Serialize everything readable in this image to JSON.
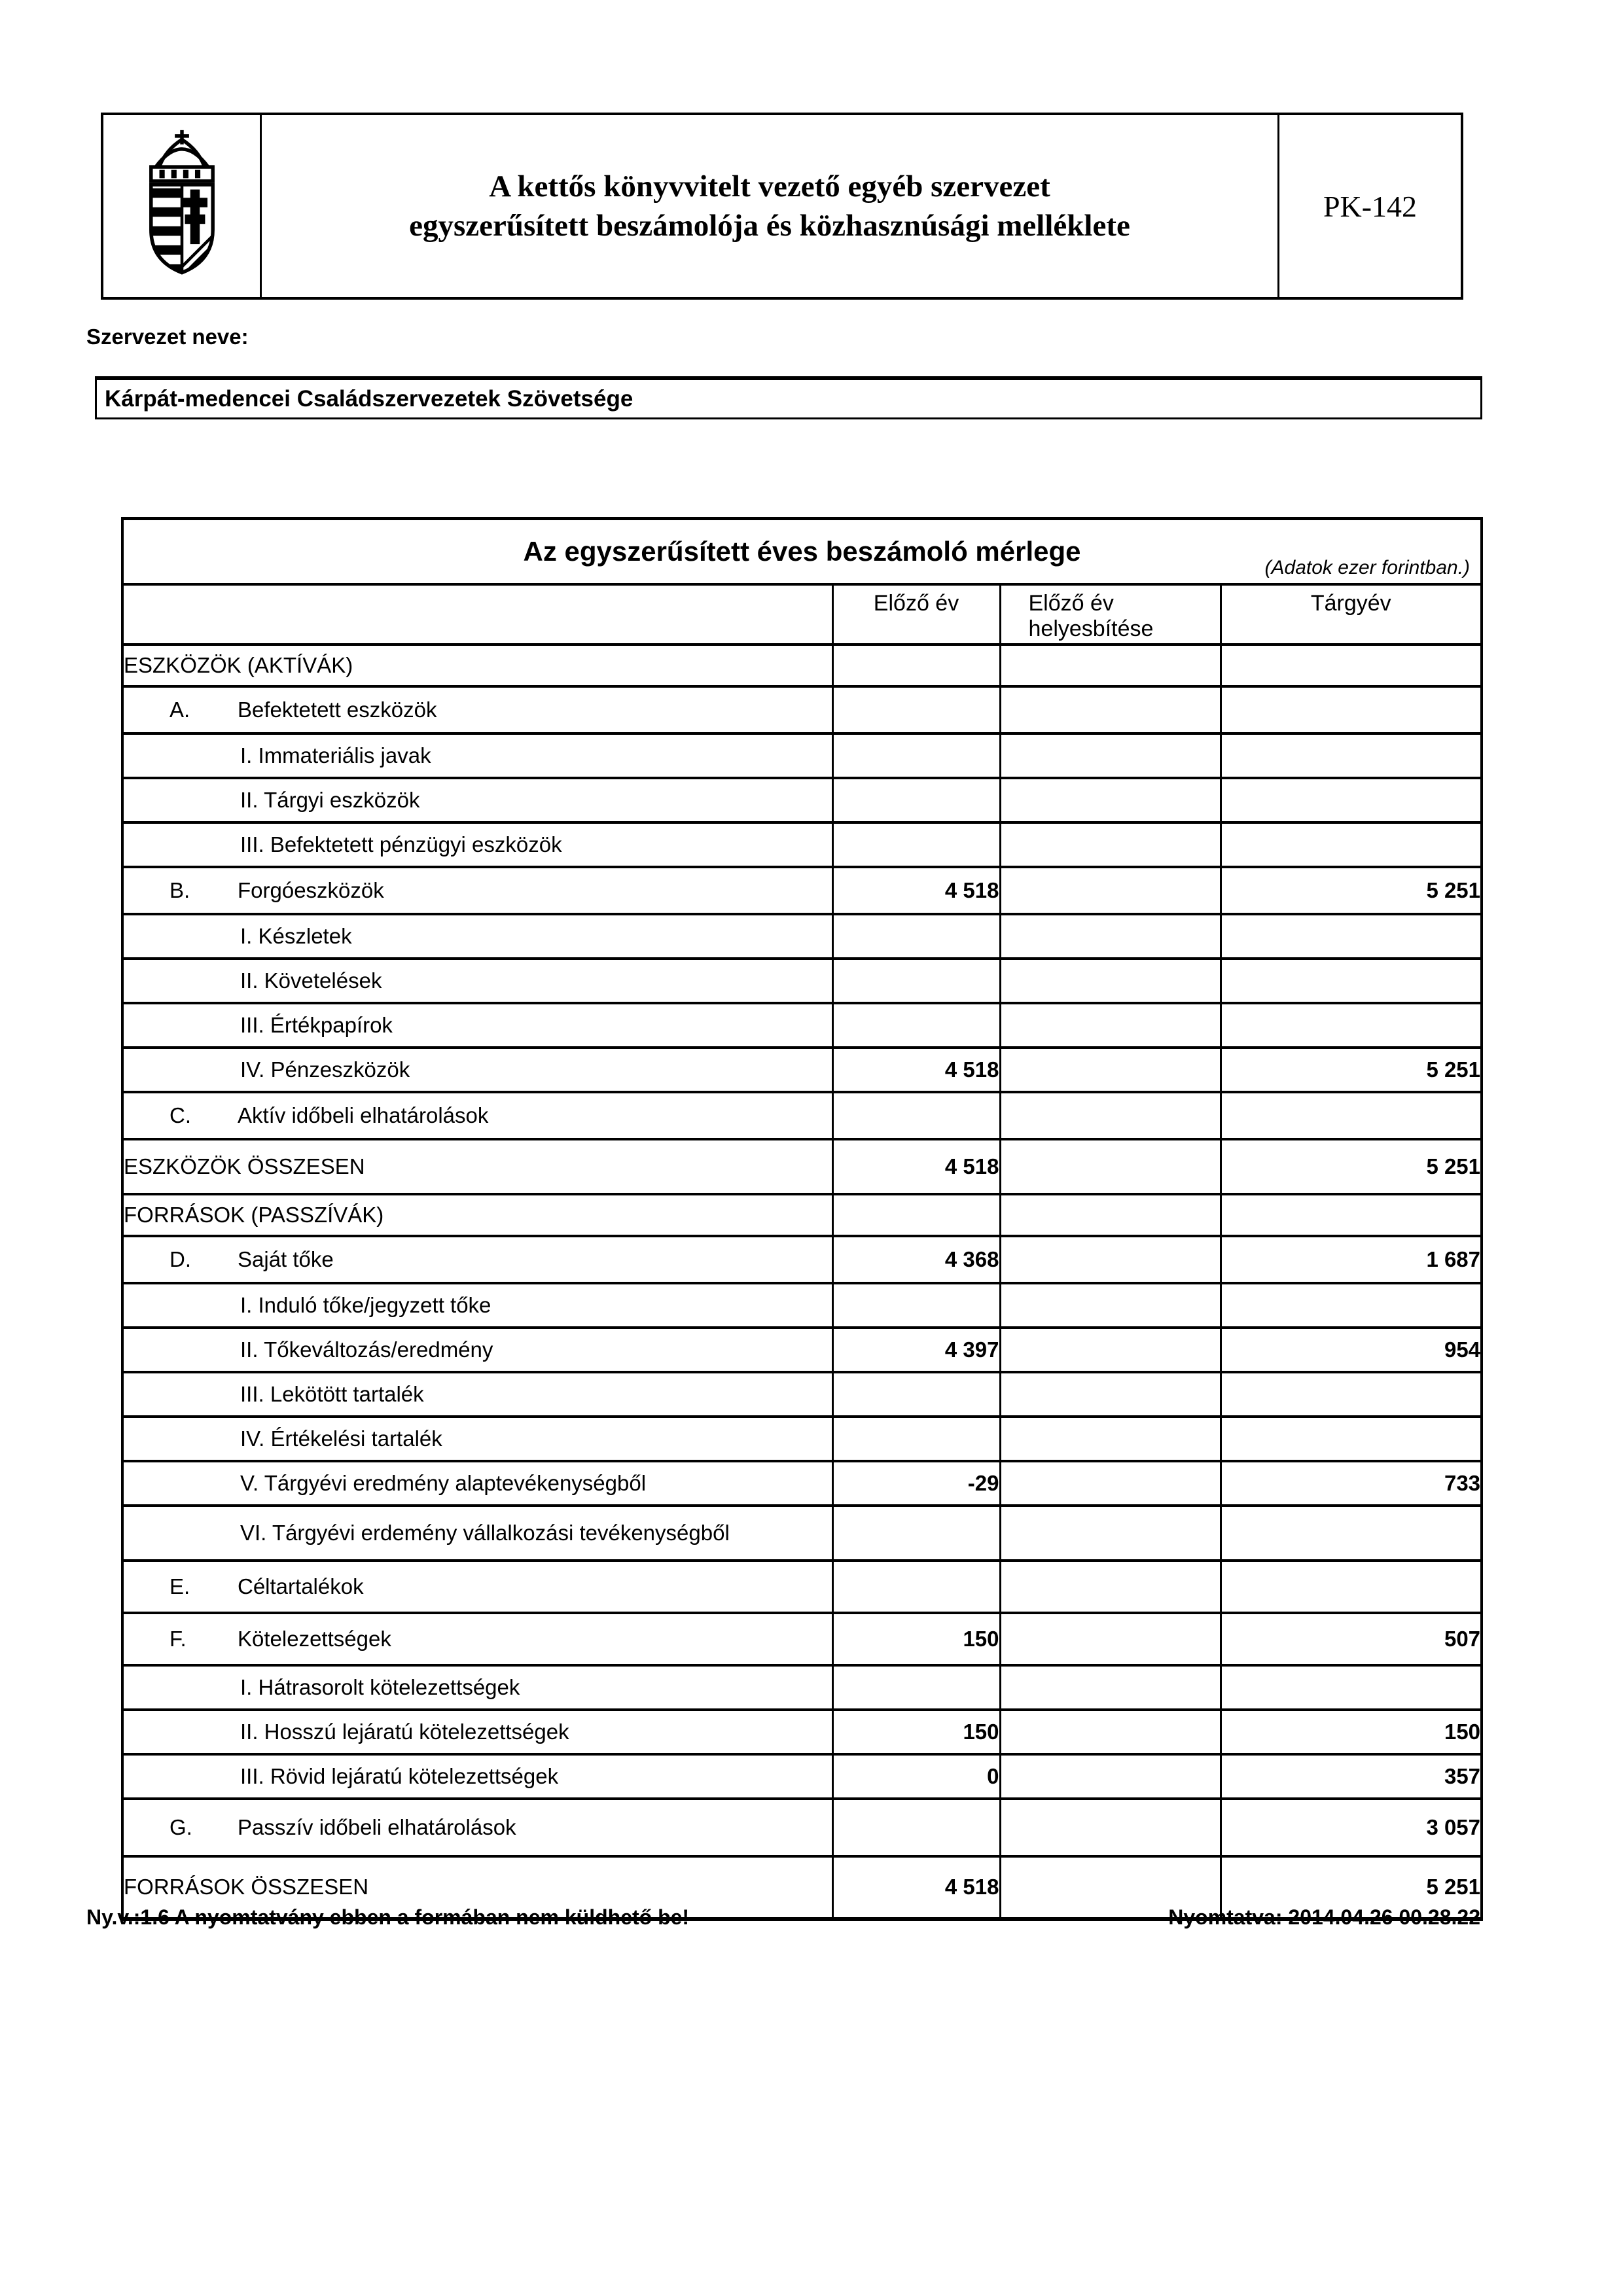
{
  "header": {
    "title_line1": "A kettős könyvvitelt vezető egyéb szervezet",
    "title_line2": "egyszerűsített beszámolója és közhasznúsági melléklete",
    "form_code": "PK-142",
    "logo_icon": "hungarian-coat-of-arms"
  },
  "org": {
    "label": "Szervezet neve:",
    "name": "Kárpát-medencei Családszervezetek Szövetsége"
  },
  "table": {
    "title": "Az egyszerűsített éves beszámoló mérlege",
    "unit_note": "(Adatok ezer forintban.)",
    "columns": [
      "Előző év",
      "Előző év helyesbítése",
      "Tárgyév"
    ],
    "rows": [
      {
        "type": "section",
        "label": "ESZKÖZÖK (AKTÍVÁK)",
        "values": [
          "",
          "",
          ""
        ]
      },
      {
        "type": "letter",
        "letter": "A.",
        "label": "Befektetett eszközök",
        "values": [
          "",
          "",
          ""
        ]
      },
      {
        "type": "sub",
        "label": "I. Immateriális javak",
        "values": [
          "",
          "",
          ""
        ]
      },
      {
        "type": "sub",
        "label": "II. Tárgyi eszközök",
        "values": [
          "",
          "",
          ""
        ]
      },
      {
        "type": "sub",
        "label": "III. Befektetett pénzügyi eszközök",
        "values": [
          "",
          "",
          ""
        ]
      },
      {
        "type": "letter",
        "letter": "B.",
        "label": "Forgóeszközök",
        "values": [
          "4 518",
          "",
          "5 251"
        ]
      },
      {
        "type": "sub",
        "label": "I. Készletek",
        "values": [
          "",
          "",
          ""
        ]
      },
      {
        "type": "sub",
        "label": "II. Követelések",
        "values": [
          "",
          "",
          ""
        ]
      },
      {
        "type": "sub",
        "label": "III. Értékpapírok",
        "values": [
          "",
          "",
          ""
        ]
      },
      {
        "type": "sub",
        "label": "IV. Pénzeszközök",
        "values": [
          "4 518",
          "",
          "5 251"
        ]
      },
      {
        "type": "letter",
        "letter": "C.",
        "label": "Aktív időbeli elhatárolások",
        "values": [
          "",
          "",
          ""
        ]
      },
      {
        "type": "total",
        "label": "ESZKÖZÖK ÖSSZESEN",
        "values": [
          "4 518",
          "",
          "5 251"
        ]
      },
      {
        "type": "section",
        "label": "FORRÁSOK (PASSZÍVÁK)",
        "values": [
          "",
          "",
          ""
        ]
      },
      {
        "type": "letter",
        "letter": "D.",
        "label": "Saját tőke",
        "values": [
          "4 368",
          "",
          "1 687"
        ]
      },
      {
        "type": "sub",
        "label": "I. Induló tőke/jegyzett tőke",
        "values": [
          "",
          "",
          ""
        ]
      },
      {
        "type": "sub",
        "label": "II. Tőkeváltozás/eredmény",
        "values": [
          "4 397",
          "",
          "954"
        ]
      },
      {
        "type": "sub",
        "label": "III. Lekötött tartalék",
        "values": [
          "",
          "",
          ""
        ]
      },
      {
        "type": "sub",
        "label": "IV. Értékelési tartalék",
        "values": [
          "",
          "",
          ""
        ]
      },
      {
        "type": "sub",
        "label": "V. Tárgyévi eredmény alaptevékenységből",
        "values": [
          "-29",
          "",
          "733"
        ]
      },
      {
        "type": "sub",
        "label": "VI. Tárgyévi erdemény vállalkozási tevékenységből",
        "values": [
          "",
          "",
          ""
        ]
      },
      {
        "type": "letter",
        "letter": "E.",
        "label": "Céltartalékok",
        "values": [
          "",
          "",
          ""
        ]
      },
      {
        "type": "letter",
        "letter": "F.",
        "label": "Kötelezettségek",
        "values": [
          "150",
          "",
          "507"
        ]
      },
      {
        "type": "sub",
        "label": "I. Hátrasorolt kötelezettségek",
        "values": [
          "",
          "",
          ""
        ]
      },
      {
        "type": "sub",
        "label": "II. Hosszú lejáratú kötelezettségek",
        "values": [
          "150",
          "",
          "150"
        ]
      },
      {
        "type": "sub",
        "label": "III. Rövid lejáratú kötelezettségek",
        "values": [
          "0",
          "",
          "357"
        ]
      },
      {
        "type": "letter",
        "letter": "G.",
        "label": "Passzív időbeli elhatárolások",
        "values": [
          "",
          "",
          "3 057"
        ]
      },
      {
        "type": "total",
        "label": "FORRÁSOK ÖSSZESEN",
        "values": [
          "4 518",
          "",
          "5 251"
        ]
      }
    ]
  },
  "footer": {
    "left": "Ny.v.:1.6 A nyomtatvány ebben a formában nem küldhető be!",
    "right": "Nyomtatva: 2014.04.26 00.28.22"
  }
}
